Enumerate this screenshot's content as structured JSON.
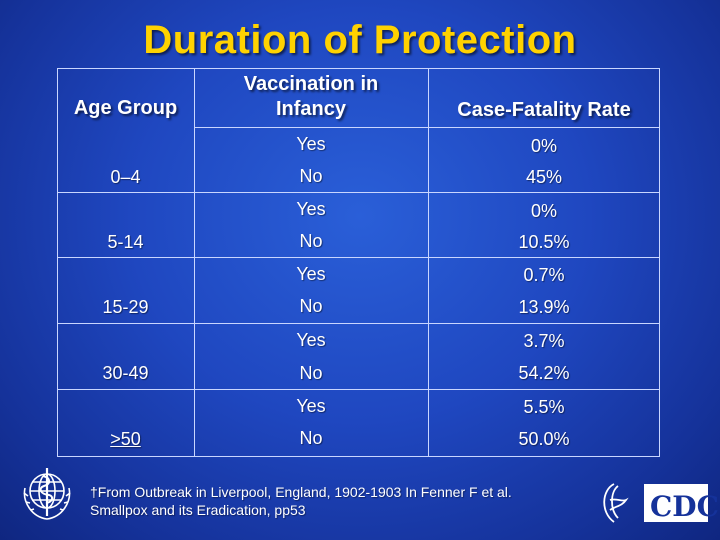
{
  "title": "Duration of Protection",
  "table": {
    "headers": {
      "age_group": "Age Group",
      "vaccination": "Vaccination in Infancy",
      "vaccination_line1": "Vaccination in",
      "vaccination_line2": "Infancy",
      "cfr": "Case-Fatality Rate"
    },
    "groups": [
      {
        "age": "0–4",
        "rows": [
          {
            "vaccinated": "Yes",
            "rate": "0%"
          },
          {
            "vaccinated": "No",
            "rate": "45%"
          }
        ]
      },
      {
        "age": "5-14",
        "rows": [
          {
            "vaccinated": "Yes",
            "rate": "0%"
          },
          {
            "vaccinated": "No",
            "rate": "10.5%"
          }
        ]
      },
      {
        "age": "15-29",
        "rows": [
          {
            "vaccinated": "Yes",
            "rate": "0.7%"
          },
          {
            "vaccinated": "No",
            "rate": "13.9%"
          }
        ]
      },
      {
        "age": "30-49",
        "rows": [
          {
            "vaccinated": "Yes",
            "rate": "3.7%"
          },
          {
            "vaccinated": "No",
            "rate": "54.2%"
          }
        ]
      },
      {
        "age": ">50",
        "rows": [
          {
            "vaccinated": "Yes",
            "rate": "5.5%"
          },
          {
            "vaccinated": "No",
            "rate": "50.0%"
          }
        ]
      }
    ]
  },
  "footnote": {
    "line1": "†From Outbreak in Liverpool, England, 1902-1903  In Fenner F et al.",
    "line2": "Smallpox and its Eradication, pp53"
  },
  "logos": {
    "who": "who-emblem-icon",
    "cdc": "CDC"
  },
  "colors": {
    "title": "#ffd200",
    "background": "#1f47c0",
    "grid": "#c9d6ff"
  }
}
